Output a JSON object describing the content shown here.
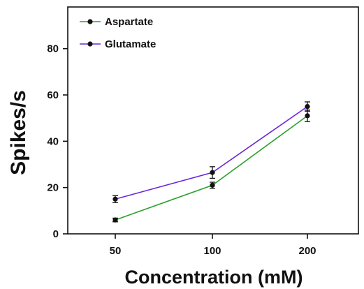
{
  "chart_data": {
    "type": "line",
    "title": "",
    "xlabel": "Concentration (mM)",
    "ylabel": "Spikes/s",
    "categories": [
      "50",
      "100",
      "200"
    ],
    "ylim": [
      0,
      98
    ],
    "yticks": [
      0,
      20,
      40,
      60,
      80
    ],
    "grid": false,
    "legend_position": "top-left",
    "series": [
      {
        "name": "Aspartate",
        "color": "#2ca02c",
        "marker": "circle",
        "values": [
          6,
          21,
          51
        ],
        "errors": [
          0.8,
          1.3,
          2.5
        ]
      },
      {
        "name": "Glutamate",
        "color": "#6a28d8",
        "marker": "circle",
        "values": [
          15,
          26.5,
          55
        ],
        "errors": [
          1.5,
          2.5,
          2.0
        ]
      }
    ]
  }
}
